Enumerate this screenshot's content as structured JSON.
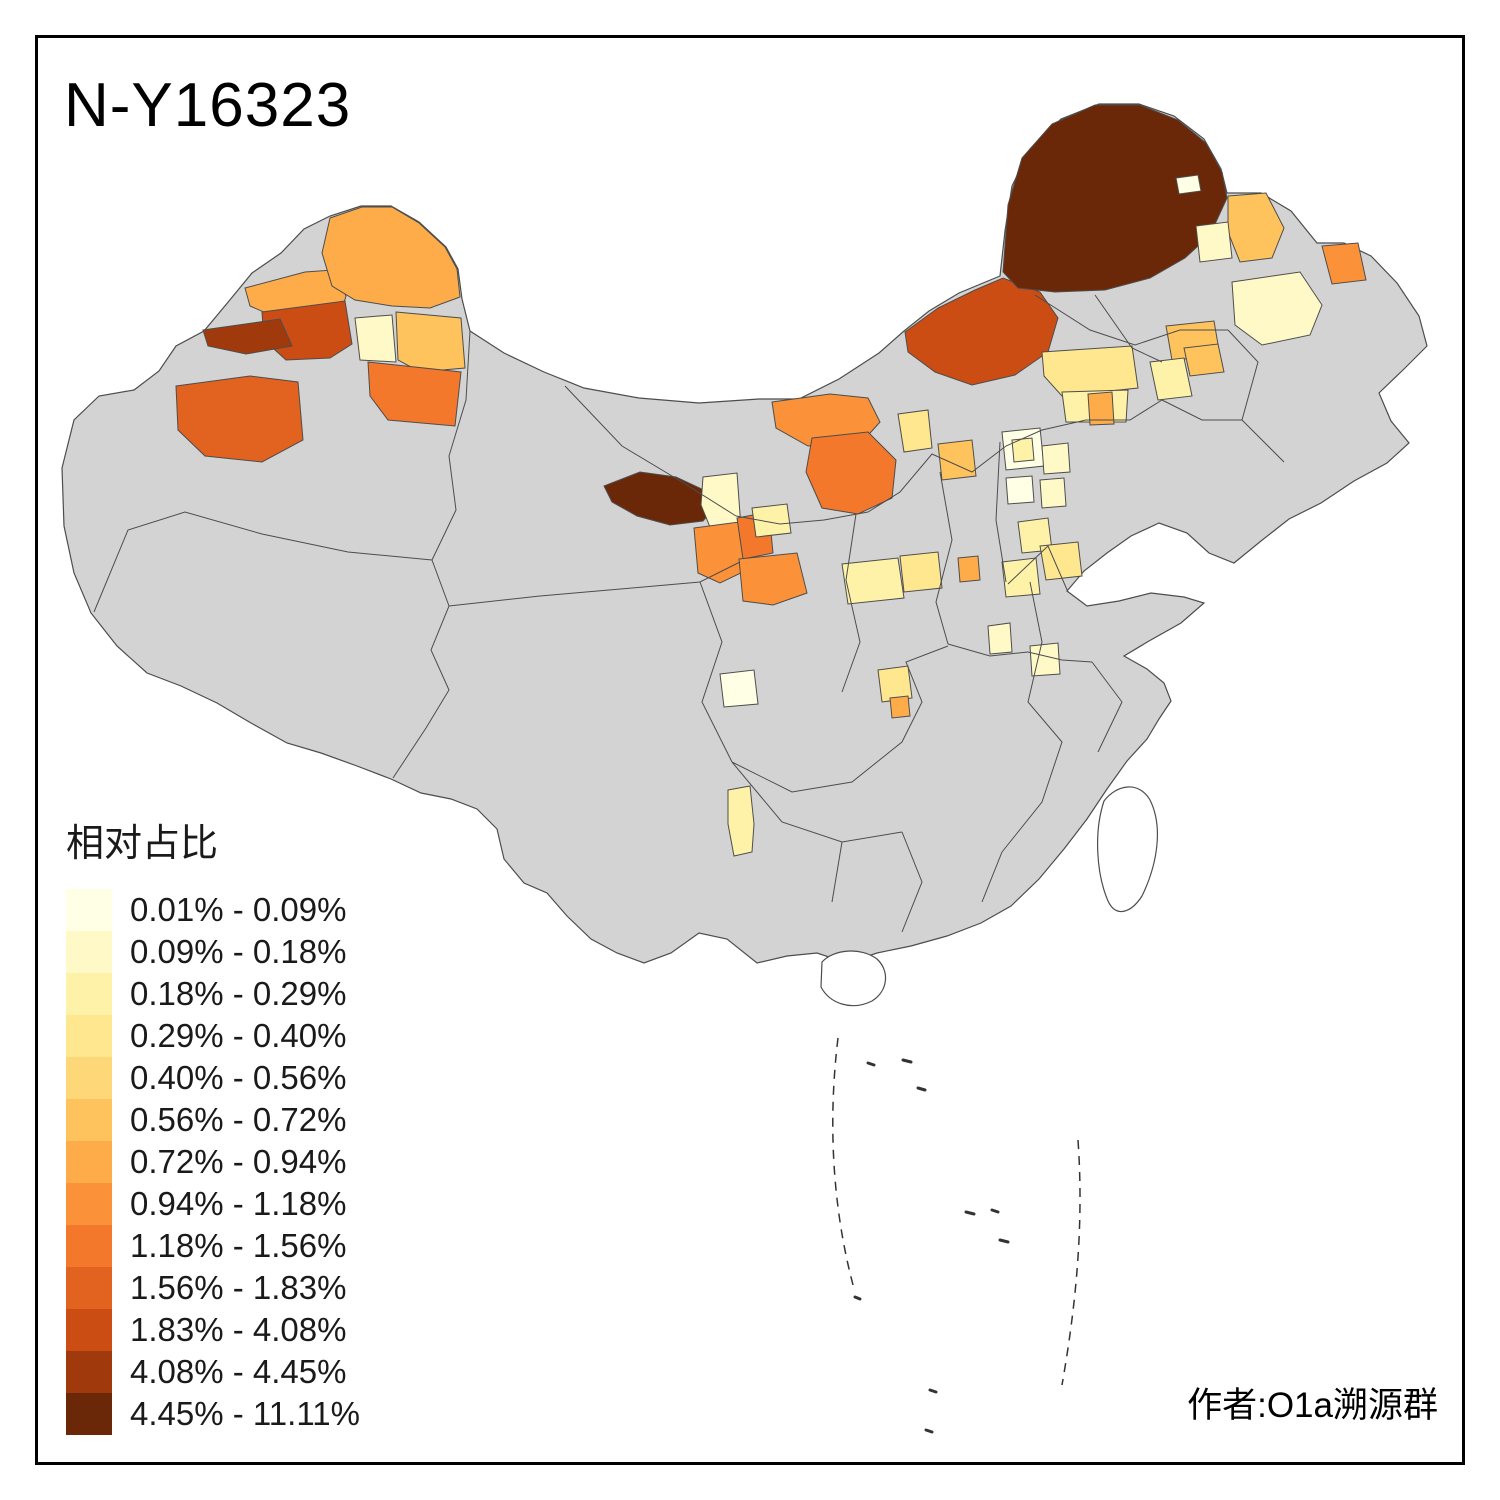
{
  "title": "N-Y16323",
  "legend": {
    "title": "相对占比",
    "bins": [
      {
        "label": "0.01% - 0.09%",
        "color": "#FFFFE5"
      },
      {
        "label": "0.09% - 0.18%",
        "color": "#FFF9C7"
      },
      {
        "label": "0.18% - 0.29%",
        "color": "#FEF2A9"
      },
      {
        "label": "0.29% - 0.40%",
        "color": "#FEE78F"
      },
      {
        "label": "0.40% - 0.56%",
        "color": "#FED778"
      },
      {
        "label": "0.56% - 0.72%",
        "color": "#FEC35D"
      },
      {
        "label": "0.72% - 0.94%",
        "color": "#FDAC49"
      },
      {
        "label": "0.94% - 1.18%",
        "color": "#FB9239"
      },
      {
        "label": "1.18% - 1.56%",
        "color": "#F3782B"
      },
      {
        "label": "1.56% - 1.83%",
        "color": "#E2621F"
      },
      {
        "label": "1.83% - 4.08%",
        "color": "#CB4D14"
      },
      {
        "label": "4.08% - 4.45%",
        "color": "#A03A0D"
      },
      {
        "label": "4.45% - 11.11%",
        "color": "#6B2808"
      }
    ]
  },
  "attribution": "作者:O1a溯源群",
  "map": {
    "base_fill": "#D3D3D3",
    "island_fill": "#FFFFFF",
    "border_color": "#4D4D4D",
    "background": "#FFFFFF",
    "regions": [
      {
        "id": "hulunbuir",
        "bin": 12
      },
      {
        "id": "hulunbuir-inner-pale",
        "bin": 0
      },
      {
        "id": "gansu-hexi",
        "bin": 12
      },
      {
        "id": "qinghai-north-pale",
        "bin": 1
      },
      {
        "id": "gansu-lanzhou",
        "bin": 7
      },
      {
        "id": "ningxia-north",
        "bin": 8
      },
      {
        "id": "gansu-southeast",
        "bin": 7
      },
      {
        "id": "gansu-east-pale",
        "bin": 2
      },
      {
        "id": "xinjiang-tacheng",
        "bin": 6
      },
      {
        "id": "xinjiang-altay",
        "bin": 6
      },
      {
        "id": "xinjiang-bortala",
        "bin": 10
      },
      {
        "id": "xinjiang-ili",
        "bin": 11
      },
      {
        "id": "xinjiang-shihezi-pale",
        "bin": 1
      },
      {
        "id": "xinjiang-changji",
        "bin": 5
      },
      {
        "id": "xinjiang-urumqi",
        "bin": 8
      },
      {
        "id": "xinjiang-aksu",
        "bin": 9
      },
      {
        "id": "neimenggu-xilingol",
        "bin": 10
      },
      {
        "id": "neimenggu-bayannur",
        "bin": 7
      },
      {
        "id": "neimenggu-ordos",
        "bin": 8
      },
      {
        "id": "neimenggu-baotou-pale",
        "bin": 3
      },
      {
        "id": "neimenggu-hohhot",
        "bin": 5
      },
      {
        "id": "neimenggu-tongliao-pale",
        "bin": 3
      },
      {
        "id": "neimenggu-chifeng-pale",
        "bin": 2
      },
      {
        "id": "chifeng-orange-strip",
        "bin": 6
      },
      {
        "id": "heilongjiang-west-orange",
        "bin": 5
      },
      {
        "id": "heilongjiang-nen-pale",
        "bin": 1
      },
      {
        "id": "heilongjiang-central-pale",
        "bin": 1
      },
      {
        "id": "heilongjiang-east-orange",
        "bin": 7
      },
      {
        "id": "jilin-west-orange",
        "bin": 5
      },
      {
        "id": "liaoning-west-pale",
        "bin": 2
      },
      {
        "id": "liaoning-north-orange",
        "bin": 5
      },
      {
        "id": "beijing-pale",
        "bin": 0
      },
      {
        "id": "beijing-yellow",
        "bin": 2
      },
      {
        "id": "hebei-north-pale",
        "bin": 1
      },
      {
        "id": "shanxi-north-pale",
        "bin": 0
      },
      {
        "id": "hebei-west-pale",
        "bin": 1
      },
      {
        "id": "hebei-south-yellow",
        "bin": 2
      },
      {
        "id": "shanxi-yellow",
        "bin": 3
      },
      {
        "id": "shaanxi-north-yellow",
        "bin": 2
      },
      {
        "id": "shanxi-south-orange",
        "bin": 6
      },
      {
        "id": "henan-north-yellow",
        "bin": 2
      },
      {
        "id": "shandong-west-yellow",
        "bin": 3
      },
      {
        "id": "henan-south-pale",
        "bin": 1
      },
      {
        "id": "anhui-north-pale",
        "bin": 1
      },
      {
        "id": "sichuan-west-pale",
        "bin": 0
      },
      {
        "id": "chongqing-yellow",
        "bin": 3
      },
      {
        "id": "chongqing-south-orange",
        "bin": 6
      },
      {
        "id": "yunnan-east-yellow",
        "bin": 2
      }
    ]
  }
}
